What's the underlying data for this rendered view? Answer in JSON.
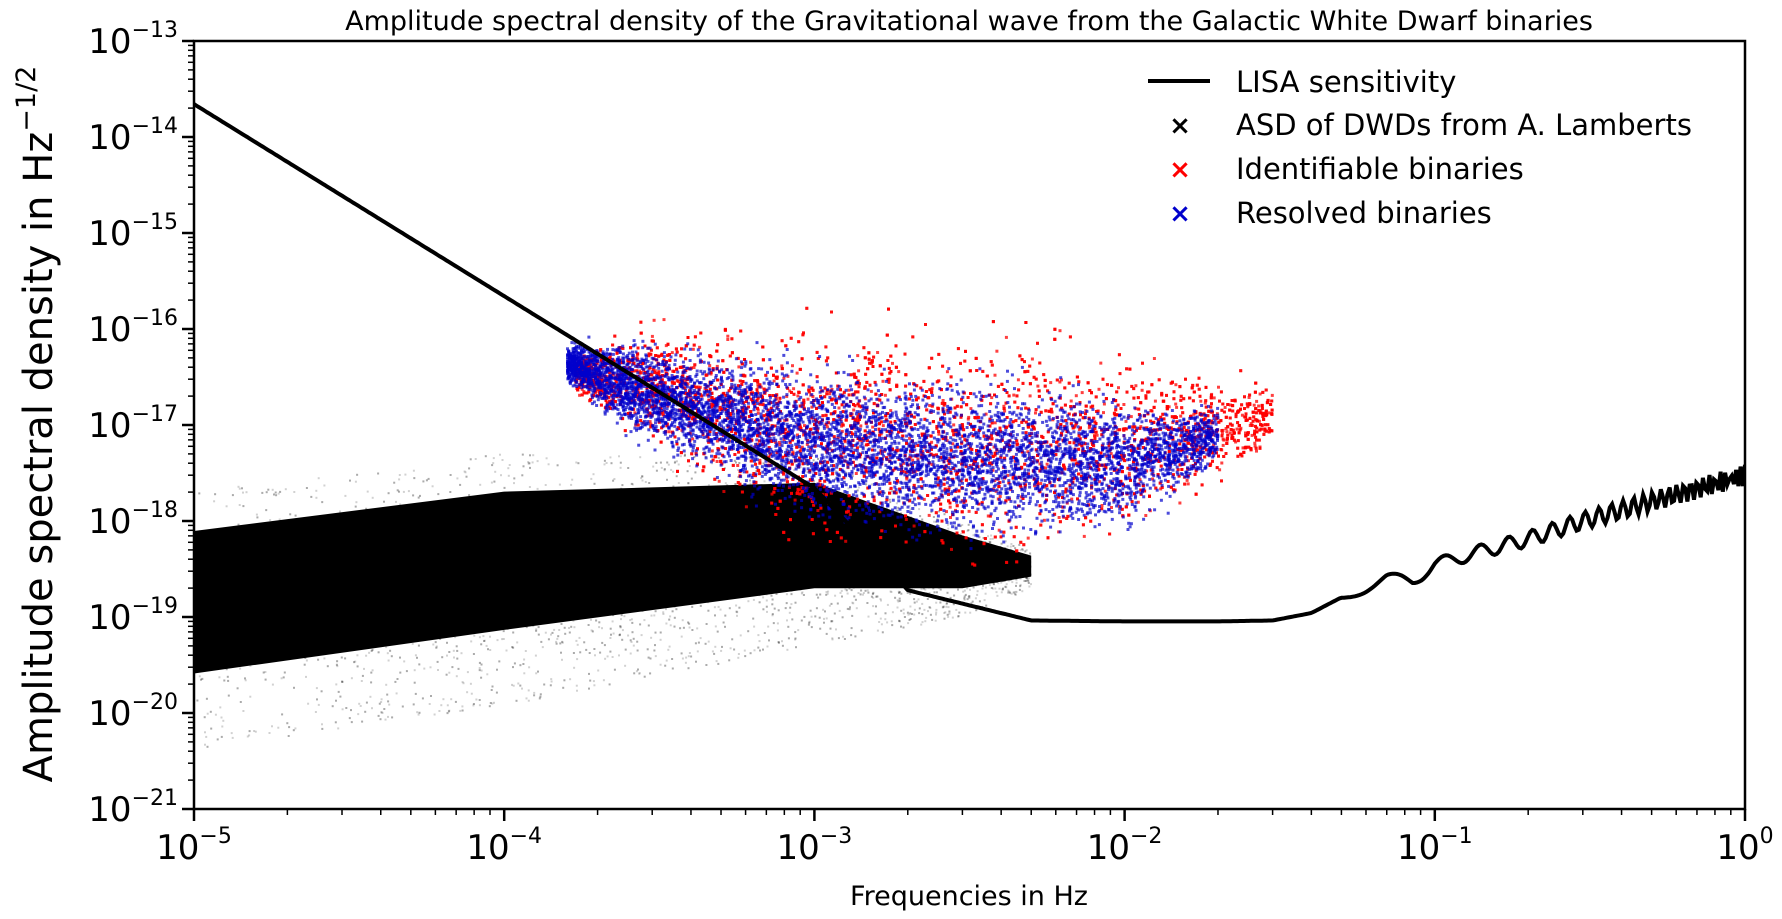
{
  "chart_data": {
    "type": "scatter",
    "title": "Amplitude spectral density of the Gravitational wave from the Galactic White Dwarf binaries",
    "xlabel": "Frequencies in Hz",
    "ylabel": "Amplitude spectral density in Hz",
    "ylabel_exponent": "−1/2",
    "xscale": "log",
    "yscale": "log",
    "xlim": [
      1e-05,
      1
    ],
    "ylim": [
      1e-21,
      1e-13
    ],
    "x_ticks": [
      {
        "value": 1e-05,
        "base": "10",
        "exp": "−5"
      },
      {
        "value": 0.0001,
        "base": "10",
        "exp": "−4"
      },
      {
        "value": 0.001,
        "base": "10",
        "exp": "−3"
      },
      {
        "value": 0.01,
        "base": "10",
        "exp": "−2"
      },
      {
        "value": 0.1,
        "base": "10",
        "exp": "−1"
      },
      {
        "value": 1,
        "base": "10",
        "exp": "0"
      }
    ],
    "y_ticks": [
      {
        "value": 1e-21,
        "base": "10",
        "exp": "−21"
      },
      {
        "value": 1e-20,
        "base": "10",
        "exp": "−20"
      },
      {
        "value": 1e-19,
        "base": "10",
        "exp": "−19"
      },
      {
        "value": 1e-18,
        "base": "10",
        "exp": "−18"
      },
      {
        "value": 1e-17,
        "base": "10",
        "exp": "−17"
      },
      {
        "value": 1e-16,
        "base": "10",
        "exp": "−16"
      },
      {
        "value": 1e-15,
        "base": "10",
        "exp": "−15"
      },
      {
        "value": 1e-14,
        "base": "10",
        "exp": "−14"
      },
      {
        "value": 1e-13,
        "base": "10",
        "exp": "−13"
      }
    ],
    "legend_position": "top-right",
    "series": [
      {
        "name": "LISA sensitivity",
        "kind": "line",
        "color": "#000000",
        "x": [
          1e-05,
          2e-05,
          5e-05,
          0.0001,
          0.0002,
          0.0005,
          0.001,
          0.0015,
          0.002,
          0.005,
          0.01,
          0.02,
          0.03,
          0.04,
          0.05,
          0.07,
          0.085,
          0.1,
          0.13,
          0.2,
          0.3,
          0.5,
          1
        ],
        "y": [
          2.2e-14,
          5.5e-15,
          8.8e-16,
          2.2e-16,
          5.5e-17,
          8.8e-18,
          2.2e-18,
          5.5e-19,
          1.9e-19,
          9.2e-20,
          9e-20,
          9e-20,
          9.2e-20,
          1.1e-19,
          1.6e-19,
          2.5e-19,
          2.4e-19,
          3.5e-19,
          4.5e-19,
          6.5e-19,
          1e-18,
          1.6e-18,
          3e-18
        ]
      },
      {
        "name": "ASD of DWDs from A. Lamberts",
        "kind": "scatter",
        "color": "#000000",
        "envelope": {
          "x": [
            1e-05,
            0.0001,
            0.001,
            0.003,
            0.005
          ],
          "y_low": [
            4e-21,
            1.2e-20,
            5e-20,
            1e-19,
            2e-19
          ],
          "y_high": [
            2e-18,
            5e-18,
            5e-18,
            1e-18,
            5e-19
          ]
        }
      },
      {
        "name": "Identifiable binaries",
        "kind": "scatter",
        "color": "#ff0000",
        "envelope": {
          "x": [
            0.00017,
            0.0003,
            0.001,
            0.003,
            0.01,
            0.03
          ],
          "y_low": [
            2e-17,
            4e-18,
            4e-19,
            3e-19,
            5e-19,
            5e-18
          ],
          "y_high": [
            6e-17,
            1.5e-16,
            1.8e-16,
            1.5e-16,
            8e-17,
            3e-17
          ]
        }
      },
      {
        "name": "Resolved binaries",
        "kind": "scatter",
        "color": "#0000cc",
        "envelope": {
          "x": [
            0.00016,
            0.00025,
            0.001,
            0.003,
            0.01,
            0.02
          ],
          "y_low": [
            2.5e-17,
            6e-18,
            6e-19,
            4e-19,
            5e-19,
            3e-18
          ],
          "y_high": [
            8e-17,
            1e-16,
            7e-17,
            5e-17,
            3e-17,
            2e-17
          ]
        }
      }
    ]
  }
}
